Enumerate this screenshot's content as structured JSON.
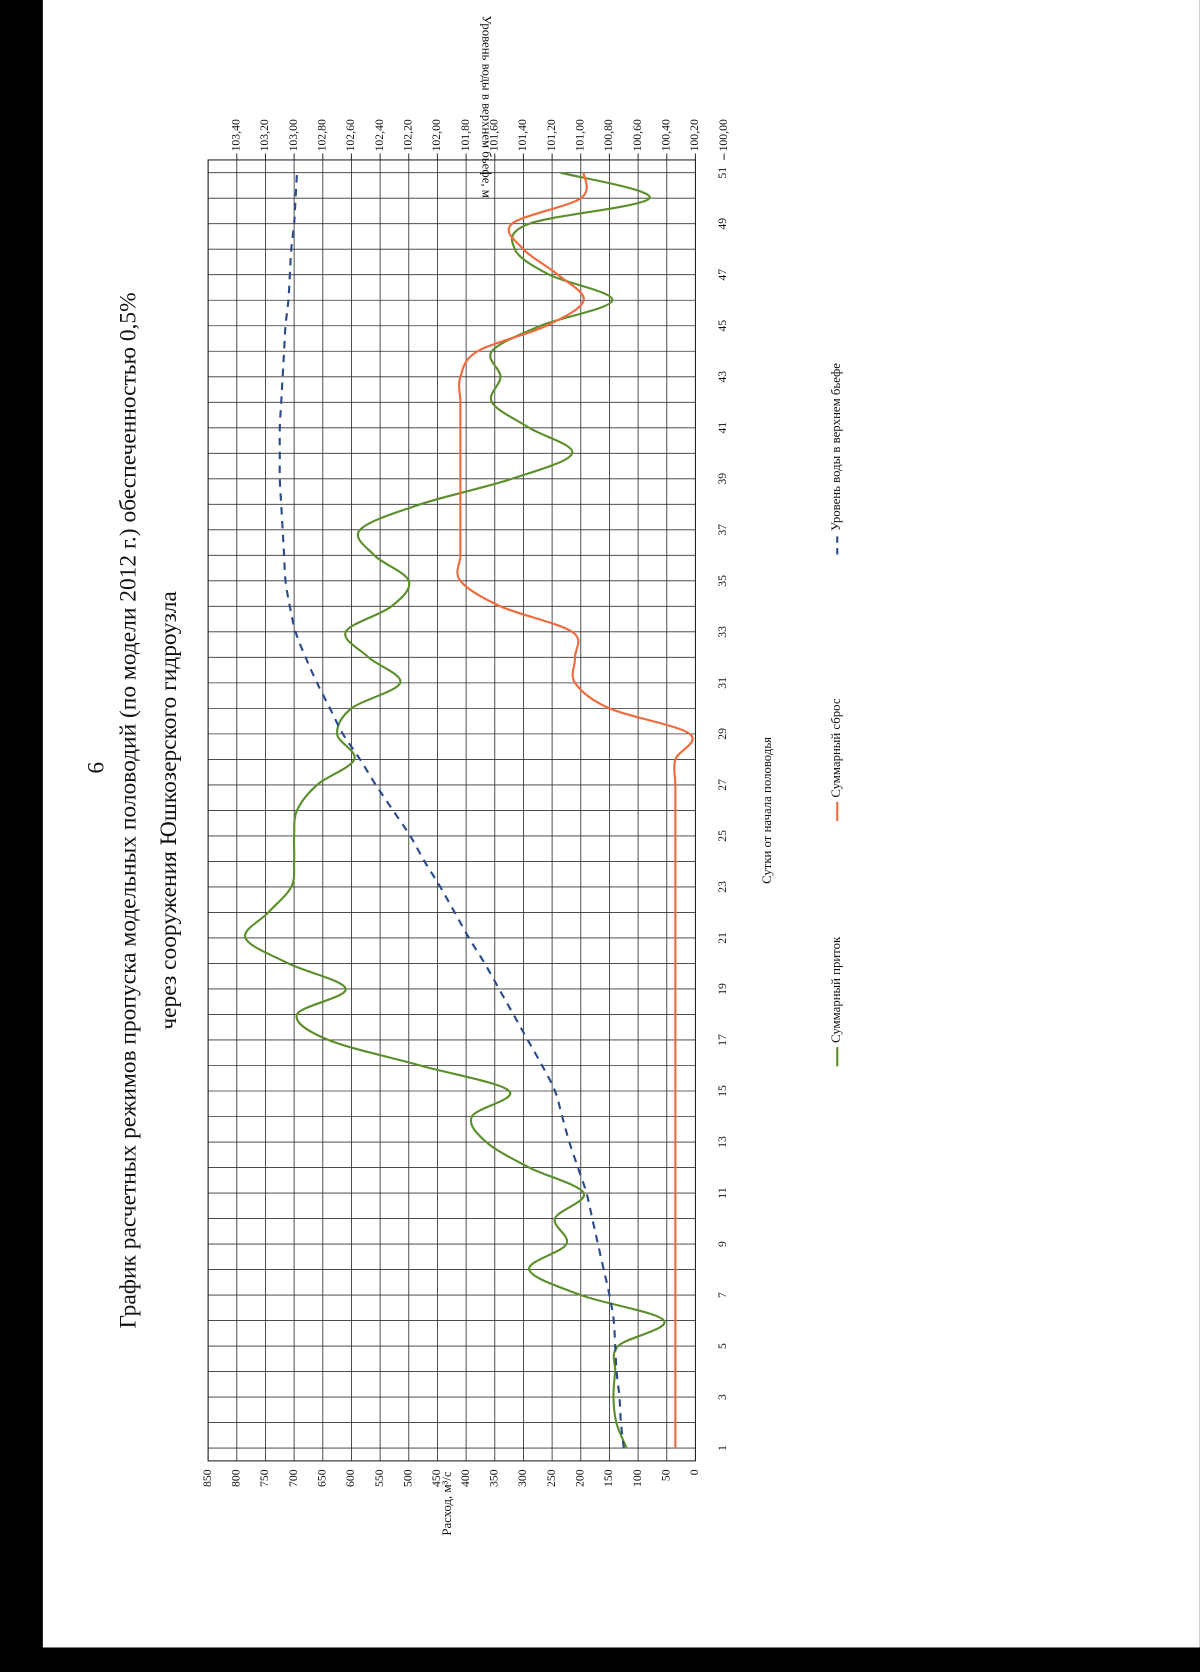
{
  "chart_data": {
    "type": "line",
    "page_number": "6",
    "title": [
      "График расчетных режимов пропуска модельных половодий (по модели 2012 г.) обеспеченностью 0,5%",
      "через сооружения Юшкозерского гидроузла"
    ],
    "x_label": "Сутки от начала половодья",
    "y_label": "Расход, м³/с",
    "y2_label": "Уровень воды в верхнем бьефе, м",
    "x": [
      1,
      2,
      3,
      4,
      5,
      6,
      7,
      8,
      9,
      10,
      11,
      12,
      13,
      14,
      15,
      16,
      17,
      18,
      19,
      20,
      21,
      22,
      23,
      24,
      25,
      26,
      27,
      28,
      29,
      30,
      31,
      32,
      33,
      34,
      35,
      36,
      37,
      38,
      39,
      40,
      41,
      42,
      43,
      44,
      45,
      46,
      47,
      48,
      49,
      50,
      51
    ],
    "xlim": [
      0.5,
      51.5
    ],
    "xticks": [
      1,
      3,
      5,
      7,
      9,
      11,
      13,
      15,
      17,
      19,
      21,
      23,
      25,
      27,
      29,
      31,
      33,
      35,
      37,
      39,
      41,
      43,
      45,
      47,
      49,
      51
    ],
    "ylim": [
      0,
      850
    ],
    "yticks": [
      0,
      50,
      100,
      150,
      200,
      250,
      300,
      350,
      400,
      450,
      500,
      550,
      600,
      650,
      700,
      750,
      800,
      850
    ],
    "y2lim": [
      100.2,
      103.6
    ],
    "y2ticks": [
      {
        "value": 100.0,
        "label": "100,00"
      },
      {
        "value": 100.2,
        "label": "100,20"
      },
      {
        "value": 100.4,
        "label": "100,40"
      },
      {
        "value": 100.6,
        "label": "100,60"
      },
      {
        "value": 100.8,
        "label": "100,80"
      },
      {
        "value": 101.0,
        "label": "101,00"
      },
      {
        "value": 101.2,
        "label": "101,20"
      },
      {
        "value": 101.4,
        "label": "101,40"
      },
      {
        "value": 101.6,
        "label": "101,60"
      },
      {
        "value": 101.8,
        "label": "101,80"
      },
      {
        "value": 102.0,
        "label": "102,00"
      },
      {
        "value": 102.2,
        "label": "102,20"
      },
      {
        "value": 102.4,
        "label": "102,40"
      },
      {
        "value": 102.6,
        "label": "102,60"
      },
      {
        "value": 102.8,
        "label": "102,80"
      },
      {
        "value": 103.0,
        "label": "103,00"
      },
      {
        "value": 103.2,
        "label": "103,20"
      },
      {
        "value": 103.4,
        "label": "103,40"
      }
    ],
    "grid": true,
    "legend": "bottom",
    "series": [
      {
        "name": "Суммарный приток",
        "color": "#5b8f2b",
        "dashed": false,
        "values": [
          120,
          138,
          143,
          140,
          135,
          55,
          200,
          290,
          225,
          245,
          195,
          290,
          365,
          390,
          325,
          480,
          640,
          695,
          610,
          710,
          785,
          745,
          705,
          700,
          700,
          695,
          660,
          595,
          625,
          600,
          515,
          570,
          610,
          530,
          500,
          560,
          585,
          480,
          320,
          215,
          290,
          355,
          340,
          355,
          270,
          145,
          255,
          315,
          290,
          80,
          235
        ]
      },
      {
        "name": "Суммарный сброс",
        "color": "#ef6a3c",
        "dashed": false,
        "values": [
          35,
          35,
          35,
          35,
          35,
          35,
          35,
          35,
          35,
          35,
          35,
          35,
          35,
          35,
          35,
          35,
          35,
          35,
          35,
          35,
          35,
          35,
          35,
          35,
          35,
          35,
          35,
          35,
          10,
          150,
          210,
          210,
          215,
          340,
          410,
          410,
          410,
          410,
          410,
          410,
          410,
          410,
          410,
          380,
          260,
          195,
          240,
          300,
          320,
          200,
          195
        ]
      },
      {
        "name": "Уровень воды в верхнем бьефе",
        "color": "#2b4c8c",
        "dashed": true,
        "axis": "y2",
        "values": [
          100.7,
          100.72,
          100.73,
          100.75,
          100.76,
          100.77,
          100.8,
          100.84,
          100.88,
          100.92,
          100.96,
          101.02,
          101.08,
          101.13,
          101.18,
          101.27,
          101.37,
          101.47,
          101.57,
          101.67,
          101.78,
          101.88,
          101.98,
          102.09,
          102.19,
          102.31,
          102.43,
          102.54,
          102.66,
          102.75,
          102.84,
          102.92,
          102.99,
          103.03,
          103.06,
          103.07,
          103.08,
          103.09,
          103.1,
          103.1,
          103.1,
          103.09,
          103.08,
          103.07,
          103.06,
          103.04,
          103.03,
          103.02,
          103.0,
          102.99,
          102.98
        ]
      }
    ]
  }
}
